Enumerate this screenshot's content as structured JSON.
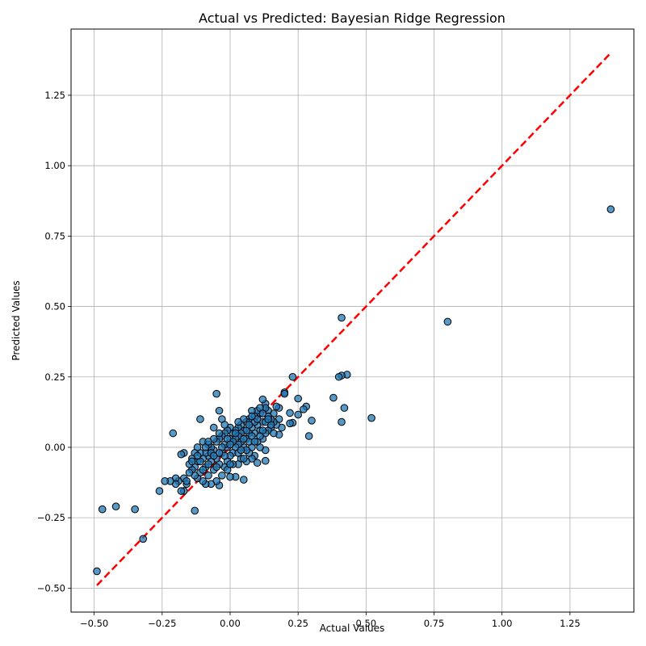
{
  "chart_data": {
    "type": "scatter",
    "title": "Actual vs Predicted: Bayesian Ridge Regression",
    "xlabel": "Actual Values",
    "ylabel": "Predicted Values",
    "xlim": [
      -0.585,
      1.485
    ],
    "ylim": [
      -0.585,
      1.485
    ],
    "xticks": [
      -0.5,
      -0.25,
      0.0,
      0.25,
      0.5,
      0.75,
      1.0,
      1.25
    ],
    "yticks": [
      -0.5,
      -0.25,
      0.0,
      0.25,
      0.5,
      0.75,
      1.0,
      1.25
    ],
    "xtick_labels": [
      "−0.50",
      "−0.25",
      "0.00",
      "0.25",
      "0.50",
      "0.75",
      "1.00",
      "1.25"
    ],
    "ytick_labels": [
      "−0.50",
      "−0.25",
      "0.00",
      "0.25",
      "0.50",
      "0.75",
      "1.00",
      "1.25"
    ],
    "grid": true,
    "reference_line": {
      "from": [
        -0.49,
        -0.49
      ],
      "to": [
        1.4,
        1.4
      ],
      "color": "#ff0000",
      "style": "dashed"
    },
    "marker_color": "#1f77b4",
    "marker_edge_color": "#000000",
    "points": [
      [
        1.4,
        0.845
      ],
      [
        0.8,
        0.446
      ],
      [
        0.41,
        0.46
      ],
      [
        0.52,
        0.104
      ],
      [
        0.43,
        0.258
      ],
      [
        0.41,
        0.255
      ],
      [
        0.4,
        0.25
      ],
      [
        0.42,
        0.14
      ],
      [
        0.41,
        0.09
      ],
      [
        0.38,
        0.176
      ],
      [
        0.3,
        0.095
      ],
      [
        0.29,
        0.04
      ],
      [
        0.28,
        0.145
      ],
      [
        0.27,
        0.135
      ],
      [
        0.25,
        0.173
      ],
      [
        0.25,
        0.116
      ],
      [
        0.23,
        0.25
      ],
      [
        0.23,
        0.087
      ],
      [
        0.22,
        0.122
      ],
      [
        0.22,
        0.085
      ],
      [
        0.2,
        0.195
      ],
      [
        0.2,
        0.19
      ],
      [
        0.19,
        0.07
      ],
      [
        0.18,
        0.14
      ],
      [
        0.18,
        0.1
      ],
      [
        0.18,
        0.045
      ],
      [
        0.17,
        0.145
      ],
      [
        0.17,
        0.08
      ],
      [
        0.16,
        0.12
      ],
      [
        0.16,
        0.09
      ],
      [
        0.15,
        0.1
      ],
      [
        0.15,
        0.07
      ],
      [
        0.14,
        0.13
      ],
      [
        0.14,
        0.06
      ],
      [
        0.14,
        0.11
      ],
      [
        0.13,
        0.155
      ],
      [
        0.13,
        0.14
      ],
      [
        0.13,
        0.05
      ],
      [
        0.13,
        -0.01
      ],
      [
        0.13,
        -0.048
      ],
      [
        0.12,
        0.17
      ],
      [
        0.12,
        0.09
      ],
      [
        0.12,
        0.03
      ],
      [
        0.11,
        0.12
      ],
      [
        0.11,
        0.06
      ],
      [
        0.11,
        0.0
      ],
      [
        0.1,
        0.13
      ],
      [
        0.1,
        0.08
      ],
      [
        0.1,
        0.02
      ],
      [
        0.1,
        -0.055
      ],
      [
        0.09,
        0.11
      ],
      [
        0.09,
        0.05
      ],
      [
        0.09,
        -0.03
      ],
      [
        0.08,
        0.13
      ],
      [
        0.08,
        0.07
      ],
      [
        0.08,
        0.0
      ],
      [
        0.08,
        -0.04
      ],
      [
        0.07,
        0.1
      ],
      [
        0.07,
        0.05
      ],
      [
        0.07,
        -0.02
      ],
      [
        0.06,
        0.09
      ],
      [
        0.06,
        0.03
      ],
      [
        0.06,
        -0.05
      ],
      [
        0.05,
        0.1
      ],
      [
        0.05,
        0.06
      ],
      [
        0.05,
        0.0
      ],
      [
        0.05,
        -0.115
      ],
      [
        0.04,
        0.08
      ],
      [
        0.04,
        0.02
      ],
      [
        0.04,
        -0.04
      ],
      [
        0.03,
        0.07
      ],
      [
        0.03,
        0.01
      ],
      [
        0.03,
        -0.06
      ],
      [
        0.02,
        0.06
      ],
      [
        0.02,
        0.0
      ],
      [
        0.02,
        -0.105
      ],
      [
        0.01,
        0.05
      ],
      [
        0.01,
        -0.02
      ],
      [
        0.01,
        -0.06
      ],
      [
        0.0,
        0.07
      ],
      [
        0.0,
        0.03
      ],
      [
        0.0,
        -0.03
      ],
      [
        0.0,
        -0.105
      ],
      [
        -0.01,
        0.06
      ],
      [
        -0.01,
        0.0
      ],
      [
        -0.01,
        -0.05
      ],
      [
        -0.02,
        0.05
      ],
      [
        -0.02,
        0.01
      ],
      [
        -0.02,
        -0.07
      ],
      [
        -0.03,
        0.1
      ],
      [
        -0.03,
        0.04
      ],
      [
        -0.03,
        -0.02
      ],
      [
        -0.03,
        -0.1
      ],
      [
        -0.04,
        0.13
      ],
      [
        -0.04,
        0.03
      ],
      [
        -0.04,
        -0.06
      ],
      [
        -0.04,
        -0.135
      ],
      [
        -0.05,
        0.19
      ],
      [
        -0.05,
        0.02
      ],
      [
        -0.05,
        -0.04
      ],
      [
        -0.05,
        -0.12
      ],
      [
        -0.06,
        0.07
      ],
      [
        -0.06,
        -0.01
      ],
      [
        -0.06,
        -0.08
      ],
      [
        -0.07,
        0.0
      ],
      [
        -0.07,
        -0.05
      ],
      [
        -0.07,
        -0.13
      ],
      [
        -0.08,
        0.01
      ],
      [
        -0.08,
        -0.03
      ],
      [
        -0.08,
        -0.1
      ],
      [
        -0.09,
        -0.02
      ],
      [
        -0.09,
        -0.07
      ],
      [
        -0.09,
        -0.13
      ],
      [
        -0.1,
        0.02
      ],
      [
        -0.1,
        -0.04
      ],
      [
        -0.1,
        -0.12
      ],
      [
        -0.11,
        0.1
      ],
      [
        -0.11,
        -0.02
      ],
      [
        -0.11,
        -0.09
      ],
      [
        -0.12,
        0.0
      ],
      [
        -0.12,
        -0.05
      ],
      [
        -0.12,
        -0.11
      ],
      [
        -0.13,
        -0.02
      ],
      [
        -0.13,
        -0.07
      ],
      [
        -0.13,
        -0.225
      ],
      [
        -0.14,
        -0.04
      ],
      [
        -0.14,
        -0.08
      ],
      [
        -0.15,
        -0.06
      ],
      [
        -0.16,
        -0.13
      ],
      [
        -0.17,
        -0.02
      ],
      [
        -0.17,
        -0.11
      ],
      [
        -0.17,
        -0.155
      ],
      [
        -0.18,
        -0.025
      ],
      [
        -0.18,
        -0.155
      ],
      [
        -0.19,
        -0.12
      ],
      [
        -0.2,
        -0.11
      ],
      [
        -0.2,
        -0.13
      ],
      [
        -0.21,
        0.05
      ],
      [
        -0.22,
        -0.12
      ],
      [
        -0.24,
        -0.12
      ],
      [
        -0.26,
        -0.155
      ],
      [
        -0.32,
        -0.325
      ],
      [
        -0.35,
        -0.22
      ],
      [
        -0.42,
        -0.21
      ],
      [
        -0.47,
        -0.22
      ],
      [
        -0.49,
        -0.44
      ],
      [
        0.15,
        0.08
      ],
      [
        0.11,
        0.04
      ],
      [
        0.09,
        0.09
      ],
      [
        0.07,
        0.02
      ],
      [
        0.06,
        0.06
      ],
      [
        0.04,
        0.05
      ],
      [
        0.03,
        0.04
      ],
      [
        0.02,
        0.03
      ],
      [
        0.01,
        0.02
      ],
      [
        -0.01,
        0.03
      ],
      [
        -0.02,
        -0.03
      ],
      [
        -0.03,
        0.0
      ],
      [
        -0.04,
        -0.02
      ],
      [
        -0.06,
        0.03
      ],
      [
        -0.07,
        -0.02
      ],
      [
        -0.08,
        -0.06
      ],
      [
        -0.09,
        0.0
      ],
      [
        -0.1,
        -0.08
      ],
      [
        -0.11,
        -0.05
      ],
      [
        -0.12,
        -0.03
      ],
      [
        -0.13,
        -0.1
      ],
      [
        -0.14,
        -0.05
      ],
      [
        0.12,
        0.06
      ],
      [
        0.1,
        0.1
      ],
      [
        0.08,
        0.04
      ],
      [
        0.05,
        0.03
      ],
      [
        0.03,
        -0.02
      ],
      [
        0.0,
        0.01
      ],
      [
        -0.05,
        -0.07
      ],
      [
        0.06,
        -0.01
      ],
      [
        0.04,
        -0.01
      ],
      [
        0.02,
        0.05
      ],
      [
        -0.01,
        -0.08
      ],
      [
        0.09,
        0.02
      ],
      [
        0.07,
        0.08
      ],
      [
        0.13,
        0.09
      ],
      [
        0.16,
        0.05
      ],
      [
        0.14,
        0.1
      ],
      [
        0.11,
        0.14
      ],
      [
        -0.15,
        -0.09
      ],
      [
        -0.16,
        -0.12
      ],
      [
        -0.02,
        0.08
      ],
      [
        0.0,
        -0.06
      ],
      [
        0.03,
        0.09
      ],
      [
        -0.06,
        -0.03
      ],
      [
        0.05,
        -0.04
      ],
      [
        0.08,
        0.11
      ],
      [
        -0.08,
        0.02
      ],
      [
        0.12,
        0.12
      ],
      [
        -0.04,
        0.05
      ]
    ]
  }
}
